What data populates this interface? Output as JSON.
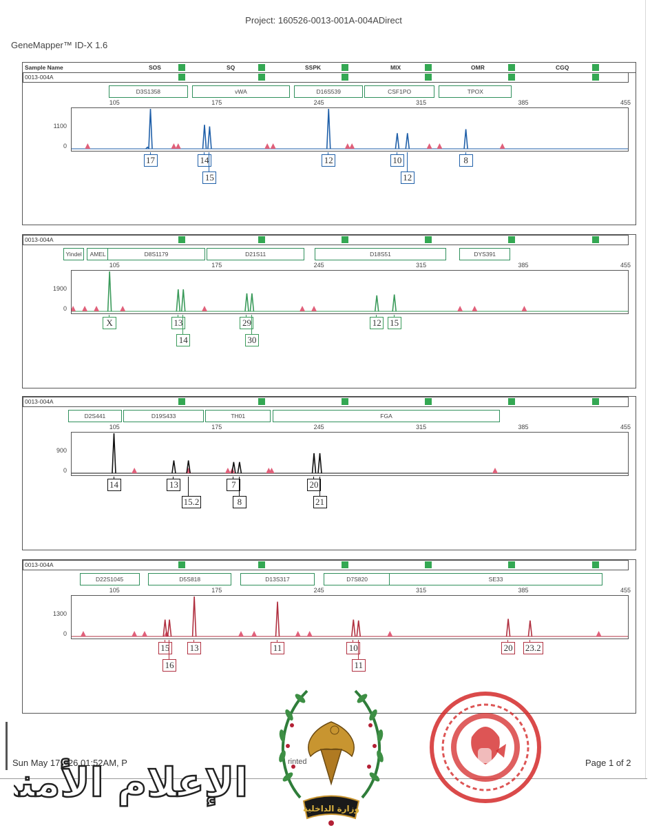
{
  "project": "Project: 160526-0013-001A-004ADirect",
  "app_name": "GeneMapper™ ID-X  1.6",
  "header": {
    "sample_name_label": "Sample Name",
    "columns": [
      "SOS",
      "SQ",
      "SSPK",
      "MIX",
      "OMR",
      "CGQ"
    ]
  },
  "x_ticks": [
    "105",
    "175",
    "245",
    "315",
    "385",
    "455"
  ],
  "footer": {
    "date": "Sun May 17 -/26 01:52AM, P",
    "printed": "rinted",
    "page": "Page 1 of 2",
    "watermark_text": "الإعلام الأمني",
    "emblem_text": "وزارة الداخلية"
  },
  "colors": {
    "blue": "#1f5fa8",
    "green": "#3a9a5a",
    "black": "#111111",
    "red": "#b03040",
    "marker_green": "#2f8f5b",
    "quality_square": "#34a853",
    "sizer_peak": "#e0607a"
  },
  "panels": [
    {
      "sample_id": "0013-004A",
      "color": "blue",
      "y_tick": "1100",
      "y_zero": "0",
      "markers": [
        {
          "name": "D3S1358",
          "x1": 100,
          "x2": 153
        },
        {
          "name": "vWA",
          "x1": 157,
          "x2": 223
        },
        {
          "name": "D16S539",
          "x1": 227,
          "x2": 273
        },
        {
          "name": "CSF1PO",
          "x1": 275,
          "x2": 322
        },
        {
          "name": "TPOX",
          "x1": 326,
          "x2": 375
        }
      ],
      "peaks": [
        {
          "x": 128,
          "h": 1.0,
          "label": "17",
          "row": 0
        },
        {
          "x": 165,
          "h": 0.6,
          "label": "14",
          "row": 0
        },
        {
          "x": 168.5,
          "h": 0.56,
          "label": "15",
          "row": 1
        },
        {
          "x": 250,
          "h": 1.0,
          "label": "12",
          "row": 0
        },
        {
          "x": 297,
          "h": 0.39,
          "label": "10",
          "row": 0
        },
        {
          "x": 304,
          "h": 0.39,
          "label": "12",
          "row": 1
        },
        {
          "x": 344,
          "h": 0.49,
          "label": "8",
          "row": 0
        }
      ],
      "extra_peaks": [
        {
          "x": 126,
          "h": 0.04
        }
      ],
      "sizer": [
        85,
        144,
        147,
        208,
        212,
        263,
        266,
        319,
        326,
        369
      ]
    },
    {
      "sample_id": "0013-004A",
      "color": "green",
      "y_tick": "1900",
      "y_zero": "0",
      "markers": [
        {
          "name": "Yindel",
          "x1": 69,
          "x2": 82
        },
        {
          "name": "AMEL",
          "x1": 85,
          "x2": 99
        },
        {
          "name": "D8S1179",
          "x1": 99,
          "x2": 165
        },
        {
          "name": "D21S11",
          "x1": 167,
          "x2": 233
        },
        {
          "name": "D18S51",
          "x1": 241,
          "x2": 330
        },
        {
          "name": "DYS391",
          "x1": 340,
          "x2": 374
        }
      ],
      "peaks": [
        {
          "x": 100,
          "h": 1.0,
          "label": "X",
          "row": 0
        },
        {
          "x": 147,
          "h": 0.55,
          "label": "13",
          "row": 0
        },
        {
          "x": 150.5,
          "h": 0.55,
          "label": "14",
          "row": 1
        },
        {
          "x": 194,
          "h": 0.45,
          "label": "29",
          "row": 0
        },
        {
          "x": 197.5,
          "h": 0.45,
          "label": "30",
          "row": 1
        },
        {
          "x": 283,
          "h": 0.4,
          "label": "12",
          "row": 0
        },
        {
          "x": 295,
          "h": 0.42,
          "label": "15",
          "row": 0
        }
      ],
      "extra_peaks": [],
      "sizer": [
        75,
        83,
        91,
        109,
        165,
        232,
        240,
        340,
        350,
        384
      ]
    },
    {
      "sample_id": "0013-004A",
      "color": "black",
      "y_tick": "900",
      "y_zero": "0",
      "markers": [
        {
          "name": "D2S441",
          "x1": 72,
          "x2": 108
        },
        {
          "name": "D19S433",
          "x1": 110,
          "x2": 164
        },
        {
          "name": "TH01",
          "x1": 166,
          "x2": 210
        },
        {
          "name": "FGA",
          "x1": 212,
          "x2": 367
        }
      ],
      "peaks": [
        {
          "x": 103,
          "h": 1.0,
          "label": "14",
          "row": 0
        },
        {
          "x": 144,
          "h": 0.32,
          "label": "13",
          "row": 0
        },
        {
          "x": 154,
          "h": 0.32,
          "label": "15.2",
          "row": 1
        },
        {
          "x": 185,
          "h": 0.28,
          "label": "7",
          "row": 0
        },
        {
          "x": 189,
          "h": 0.28,
          "label": "8",
          "row": 1
        },
        {
          "x": 240,
          "h": 0.5,
          "label": "20",
          "row": 0
        },
        {
          "x": 244,
          "h": 0.5,
          "label": "21",
          "row": 1
        }
      ],
      "extra_peaks": [],
      "sizer": [
        71,
        117,
        154,
        181,
        184,
        209,
        211,
        364
      ]
    },
    {
      "sample_id": "0013-004A",
      "color": "red",
      "y_tick": "1300",
      "y_zero": "0",
      "markers": [
        {
          "name": "D22S1045",
          "x1": 80,
          "x2": 120
        },
        {
          "name": "D5S818",
          "x1": 127,
          "x2": 183
        },
        {
          "name": "D13S317",
          "x1": 190,
          "x2": 240
        },
        {
          "name": "D7S820",
          "x1": 247,
          "x2": 292
        },
        {
          "name": "SE33",
          "x1": 292,
          "x2": 437
        }
      ],
      "peaks": [
        {
          "x": 138,
          "h": 0.42,
          "label": "15",
          "row": 0
        },
        {
          "x": 141,
          "h": 0.42,
          "label": "16",
          "row": 1
        },
        {
          "x": 158,
          "h": 1.0,
          "label": "13",
          "row": 0
        },
        {
          "x": 215,
          "h": 0.87,
          "label": "11",
          "row": 0
        },
        {
          "x": 267,
          "h": 0.42,
          "label": "10",
          "row": 0
        },
        {
          "x": 270.5,
          "h": 0.4,
          "label": "11",
          "row": 1
        },
        {
          "x": 373,
          "h": 0.44,
          "label": "20",
          "row": 0
        },
        {
          "x": 388,
          "h": 0.4,
          "label": "23.2",
          "row": 0
        }
      ],
      "extra_peaks": [],
      "sizer": [
        72,
        82,
        117,
        124,
        139,
        190,
        199,
        229,
        237,
        292,
        435
      ]
    }
  ]
}
